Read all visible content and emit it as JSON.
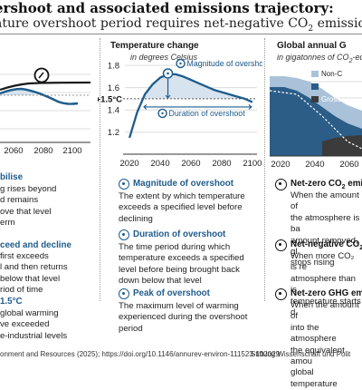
{
  "header": {
    "title": "ershoot and associated emissions trajectory:",
    "subtitle_pre": "ature overshoot period requires net-negative CO",
    "subtitle_sub": "2",
    "subtitle_post": " emissions"
  },
  "left_chart": {
    "x_ticks": [
      "2060",
      "2080",
      "2100"
    ],
    "icon": "peak-clock-icon"
  },
  "center_chart": {
    "heading": "Temperature change",
    "subheading": "in degrees Celsius",
    "chart_data": {
      "type": "line",
      "title": "Temperature change",
      "ylabel": "in degrees Celsius",
      "x": [
        2020,
        2025,
        2030,
        2035,
        2040,
        2045,
        2050,
        2055,
        2060,
        2065,
        2070,
        2075,
        2080,
        2085,
        2090,
        2095,
        2100
      ],
      "y": [
        1.15,
        1.38,
        1.54,
        1.63,
        1.69,
        1.72,
        1.72,
        1.7,
        1.67,
        1.64,
        1.61,
        1.58,
        1.56,
        1.54,
        1.52,
        1.5,
        1.47
      ],
      "threshold": 1.5,
      "threshold_label": "+1.5°C",
      "xlim": [
        2017,
        2103
      ],
      "ylim": [
        1.1,
        1.85
      ],
      "y_ticks": [
        "1.8",
        "1.6",
        "1.4",
        "1.2"
      ],
      "y_tick_values": [
        1.8,
        1.6,
        1.4,
        1.2
      ],
      "x_ticks": [
        "2020",
        "2040",
        "2060",
        "2080",
        "2100"
      ],
      "x_tick_values": [
        2020,
        2040,
        2060,
        2080,
        2100
      ],
      "annotations": [
        "Magnitude of overshoot",
        "Duration of overshoot"
      ],
      "line_color": "#1f5c8c",
      "fill_color": "#d7e3ee"
    }
  },
  "right_chart": {
    "heading": "Global annual G",
    "subheading_pre": "in gigatonnes of CO",
    "subheading_sub": "2",
    "subheading_post": "-eq",
    "legend": [
      "Non-C",
      "Gross",
      "Gross"
    ],
    "x_ticks": [
      "2020",
      "2040",
      "2060"
    ],
    "colors": {
      "non_co2": "#a9c2d9",
      "gross_co2": "#2b5d87",
      "gross_removal": "#3b3b3b"
    }
  },
  "left_text": {
    "section1_heading": "bilise",
    "section1_lines": [
      "g rises beyond",
      "d remains",
      "ove that level",
      "erm"
    ],
    "section2_heading": "ceed and decline",
    "section2_lines": [
      "first exceeds",
      "l and then returns",
      "below that level",
      "riod of time"
    ],
    "section3_heading": "1.5°C",
    "section3_lines": [
      "global warming",
      "ve exceeded",
      "e-industrial levels"
    ]
  },
  "definitions": [
    {
      "icon": "magnitude-icon",
      "title": "Magnitude of overshoot",
      "lines": [
        "The extent by which temperature",
        "exceeds a specified level before",
        "declining"
      ]
    },
    {
      "icon": "duration-icon",
      "title": "Duration of overshoot",
      "lines": [
        "The time period during which",
        "temperature exceeds a specified",
        "level before being brought back",
        "down below that level"
      ]
    },
    {
      "icon": "peak-icon",
      "title": "Peak of overshoot",
      "lines": [
        "The maximum level of warming",
        "experienced during the overshoot",
        "period"
      ]
    }
  ],
  "right_text": [
    {
      "heading_pre": "Net-zero CO",
      "heading_sub": "2",
      "heading_post": " emis",
      "lines": [
        "When the amount of",
        "the atmosphere is ba",
        "amount removed, gl",
        "stops rising"
      ]
    },
    {
      "heading_pre": "Net-negative CO",
      "heading_sub": "2",
      "heading_post": " e",
      "lines": [
        "When more CO₂ is re",
        "atmosphere than is",
        "temperature starts d"
      ]
    },
    {
      "heading_pre": "Net-zero GHG emis",
      "heading_sub": "",
      "heading_post": "",
      "lines": [
        "When the amount of",
        "into the atmosphere",
        "the equivalent amou",
        "global temperature"
      ]
    }
  ],
  "footer": {
    "source": "onment and Resources (2025); https://doi.org/10.1146/annurev-environ-111523-102029",
    "credit": "Stiftung Wissenschaft und Polit"
  }
}
